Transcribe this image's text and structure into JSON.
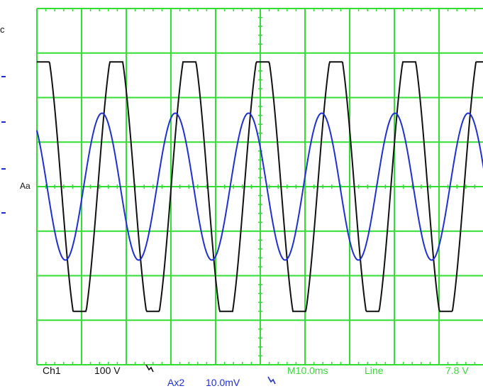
{
  "display": {
    "colors": {
      "background": "#ffffff",
      "graticule": "#33dd33",
      "ch1_trace": "#111111",
      "math_trace": "#1f2fd8"
    },
    "graticule": {
      "divisions_x": 10,
      "divisions_y": 8,
      "minor_ticks_per_div": 5
    }
  },
  "readouts": {
    "ch1_label": "Ch1",
    "ch1_scale": "100 V",
    "ch1_coupling_icon": "ac-coupling-icon",
    "math_label": "Ax2",
    "math_scale": "10.0mV",
    "math_coupling_icon": "ac-coupling-icon",
    "timebase": "M10.0ms",
    "trigger_source": "Line",
    "trigger_level": "7.8 V",
    "trigger_marker": "Aa",
    "edge_char": "c"
  },
  "traces": {
    "ch1": {
      "name": "Ch1",
      "cycles_visible": 6.1,
      "amplitude_div": 2.8,
      "phase_deg": 60,
      "shape": "clipped-sine"
    },
    "math": {
      "name": "Ax2",
      "cycles_visible": 6.1,
      "amplitude_div": 1.65,
      "phase_deg": 130,
      "shape": "sine"
    }
  }
}
